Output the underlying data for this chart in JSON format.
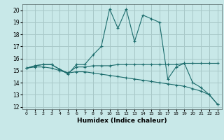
{
  "title": "",
  "xlabel": "Humidex (Indice chaleur)",
  "background_color": "#c8e8e8",
  "grid_color": "#a8c8c8",
  "line_color": "#1a6b6b",
  "xlim": [
    0,
    23
  ],
  "ylim": [
    12,
    20
  ],
  "yticks": [
    12,
    13,
    14,
    15,
    16,
    17,
    18,
    19,
    20
  ],
  "xticks": [
    0,
    1,
    2,
    3,
    4,
    5,
    6,
    7,
    8,
    9,
    10,
    11,
    12,
    13,
    14,
    15,
    16,
    17,
    18,
    19,
    20,
    21,
    22,
    23
  ],
  "line1_x": [
    0,
    1,
    2,
    3,
    4,
    5,
    6,
    7,
    8,
    9,
    10,
    11,
    12,
    13,
    14,
    15,
    16,
    17,
    18,
    19,
    20,
    21,
    22,
    23
  ],
  "line1_y": [
    15.2,
    15.4,
    15.5,
    15.5,
    15.1,
    14.7,
    15.5,
    15.5,
    16.3,
    17.0,
    20.1,
    18.5,
    20.1,
    17.4,
    19.6,
    19.3,
    19.0,
    14.3,
    15.3,
    15.6,
    14.0,
    13.6,
    13.0,
    12.2
  ],
  "line2_x": [
    0,
    1,
    2,
    3,
    4,
    5,
    6,
    7,
    8,
    9,
    10,
    11,
    12,
    13,
    14,
    15,
    16,
    17,
    18,
    19,
    20,
    21,
    22,
    23
  ],
  "line2_y": [
    15.2,
    15.4,
    15.5,
    15.5,
    15.1,
    14.8,
    15.3,
    15.3,
    15.4,
    15.4,
    15.4,
    15.5,
    15.5,
    15.5,
    15.5,
    15.5,
    15.5,
    15.5,
    15.5,
    15.6,
    15.6,
    15.6,
    15.6,
    15.6
  ],
  "line3_x": [
    0,
    1,
    2,
    3,
    4,
    5,
    6,
    7,
    8,
    9,
    10,
    11,
    12,
    13,
    14,
    15,
    16,
    17,
    18,
    19,
    20,
    21,
    22,
    23
  ],
  "line3_y": [
    15.2,
    15.3,
    15.3,
    15.2,
    15.0,
    14.8,
    14.9,
    14.9,
    14.8,
    14.7,
    14.6,
    14.5,
    14.4,
    14.3,
    14.2,
    14.1,
    14.0,
    13.9,
    13.8,
    13.7,
    13.5,
    13.3,
    13.0,
    12.2
  ]
}
